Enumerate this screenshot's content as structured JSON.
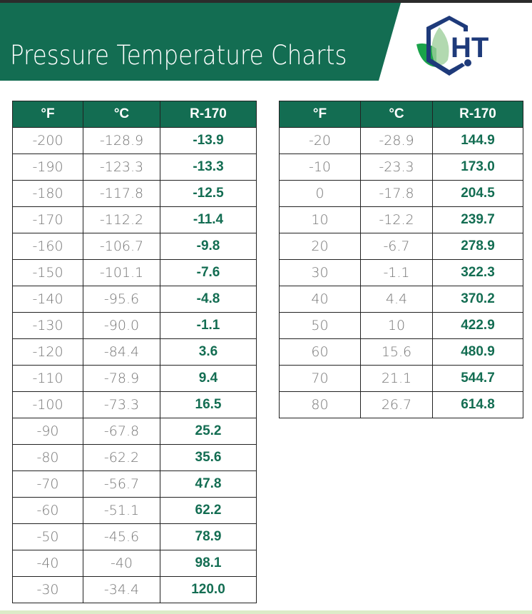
{
  "header": {
    "title": "Pressure Temperature Charts",
    "logo_text": "HT"
  },
  "colors": {
    "brand_green": "#136d52",
    "logo_blue": "#1e3a7a"
  },
  "columns": [
    "°F",
    "°C",
    "R-170"
  ],
  "table_left": [
    [
      "-200",
      "-128.9",
      "-13.9"
    ],
    [
      "-190",
      "-123.3",
      "-13.3"
    ],
    [
      "-180",
      "-117.8",
      "-12.5"
    ],
    [
      "-170",
      "-112.2",
      "-11.4"
    ],
    [
      "-160",
      "-106.7",
      "-9.8"
    ],
    [
      "-150",
      "-101.1",
      "-7.6"
    ],
    [
      "-140",
      "-95.6",
      "-4.8"
    ],
    [
      "-130",
      "-90.0",
      "-1.1"
    ],
    [
      "-120",
      "-84.4",
      "3.6"
    ],
    [
      "-110",
      "-78.9",
      "9.4"
    ],
    [
      "-100",
      "-73.3",
      "16.5"
    ],
    [
      "-90",
      "-67.8",
      "25.2"
    ],
    [
      "-80",
      "-62.2",
      "35.6"
    ],
    [
      "-70",
      "-56.7",
      "47.8"
    ],
    [
      "-60",
      "-51.1",
      "62.2"
    ],
    [
      "-50",
      "-45.6",
      "78.9"
    ],
    [
      "-40",
      "-40",
      "98.1"
    ],
    [
      "-30",
      "-34.4",
      "120.0"
    ]
  ],
  "table_right": [
    [
      "-20",
      "-28.9",
      "144.9"
    ],
    [
      "-10",
      "-23.3",
      "173.0"
    ],
    [
      "0",
      "-17.8",
      "204.5"
    ],
    [
      "10",
      "-12.2",
      "239.7"
    ],
    [
      "20",
      "-6.7",
      "278.9"
    ],
    [
      "30",
      "-1.1",
      "322.3"
    ],
    [
      "40",
      "4.4",
      "370.2"
    ],
    [
      "50",
      "10",
      "422.9"
    ],
    [
      "60",
      "15.6",
      "480.9"
    ],
    [
      "70",
      "21.1",
      "544.7"
    ],
    [
      "80",
      "26.7",
      "614.8"
    ]
  ]
}
